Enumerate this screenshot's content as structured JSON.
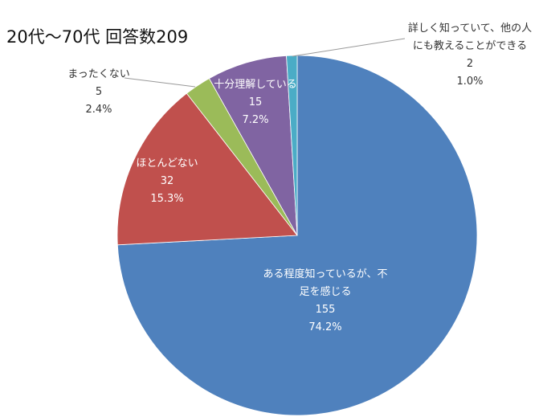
{
  "chart_data": {
    "type": "pie",
    "title": "20代～70代 回答数209",
    "slices": [
      {
        "label_lines": [
          "ある程度知っているが、不",
          "足を感じる"
        ],
        "count": "155",
        "percent": "74.2%",
        "value": 155,
        "color": "#4f81bd",
        "label_color": "#ffffff"
      },
      {
        "label_lines": [
          "ほとんどない"
        ],
        "count": "32",
        "percent": "15.3%",
        "value": 32,
        "color": "#c0504d",
        "label_color": "#ffffff"
      },
      {
        "label_lines": [
          "まったくない"
        ],
        "count": "5",
        "percent": "2.4%",
        "value": 5,
        "color": "#9bbb59",
        "label_color": "#333333"
      },
      {
        "label_lines": [
          "十分理解している"
        ],
        "count": "15",
        "percent": "7.2%",
        "value": 15,
        "color": "#8064a2",
        "label_color": "#ffffff"
      },
      {
        "label_lines": [
          "詳しく知っていて、他の人",
          "にも教えることができる"
        ],
        "count": "2",
        "percent": "1.0%",
        "value": 2,
        "color": "#4bacc6",
        "label_color": "#333333"
      }
    ]
  }
}
